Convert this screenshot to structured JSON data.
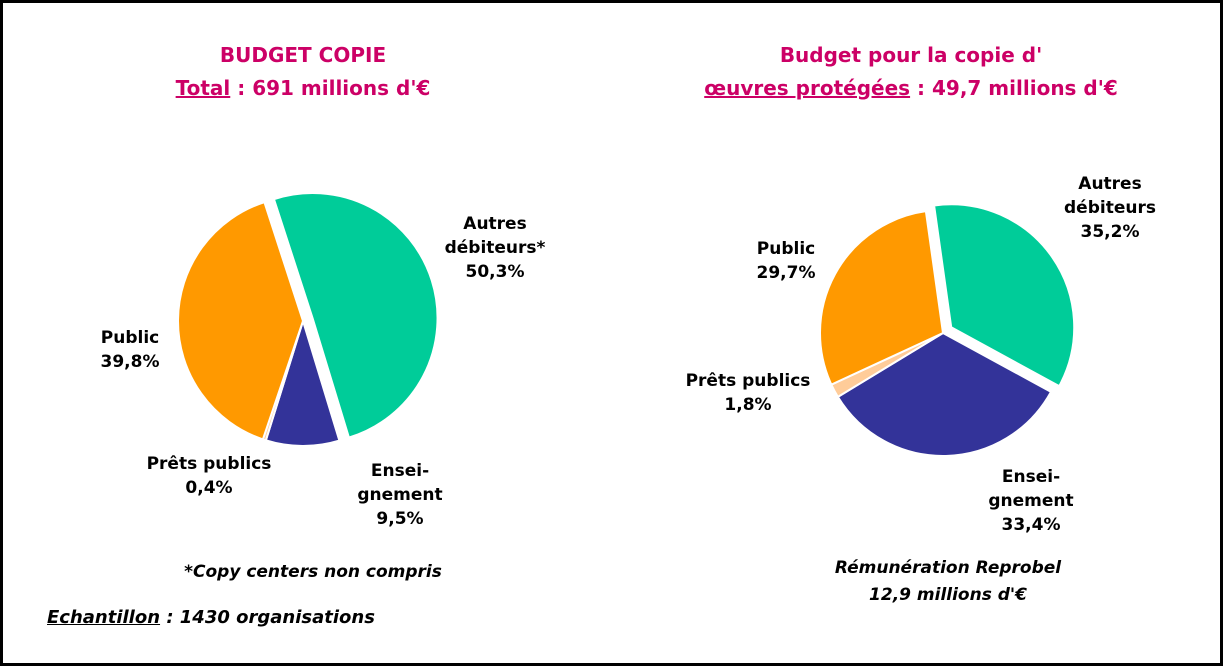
{
  "chart_data": [
    {
      "type": "pie",
      "title": "BUDGET COPIE",
      "subtitle": {
        "term": "Total",
        "text": " : 691 millions d'€"
      },
      "categories": [
        "Autres\ndébiteurs*",
        "Ensei-\ngnement",
        "Prêts publics",
        "Public"
      ],
      "values": [
        50.3,
        9.5,
        0.4,
        39.8
      ],
      "value_labels": [
        "50,3%",
        "9,5%",
        "0,4%",
        "39,8%"
      ],
      "colors": [
        "#00cc99",
        "#333399",
        "#ffcc99",
        "#ff9900"
      ],
      "note": "*Copy centers non compris"
    },
    {
      "type": "pie",
      "title": "Budget pour la copie d'",
      "subtitle": {
        "term": "œuvres protégées",
        "text": " : 49,7 millions d'€"
      },
      "categories": [
        "Autres\ndébiteurs",
        "Ensei-\ngnement",
        "Prêts publics",
        "Public"
      ],
      "values": [
        35.2,
        33.4,
        1.8,
        29.7
      ],
      "value_labels": [
        "35,2%",
        "33,4%",
        "1,8%",
        "29,7%"
      ],
      "colors": [
        "#00cc99",
        "#333399",
        "#ffcc99",
        "#ff9900"
      ],
      "note": "Rémunération Reprobel\n12,9 millions d'€"
    }
  ],
  "footer": {
    "term": "Echantillon",
    "text": " : 1430 organisations"
  }
}
